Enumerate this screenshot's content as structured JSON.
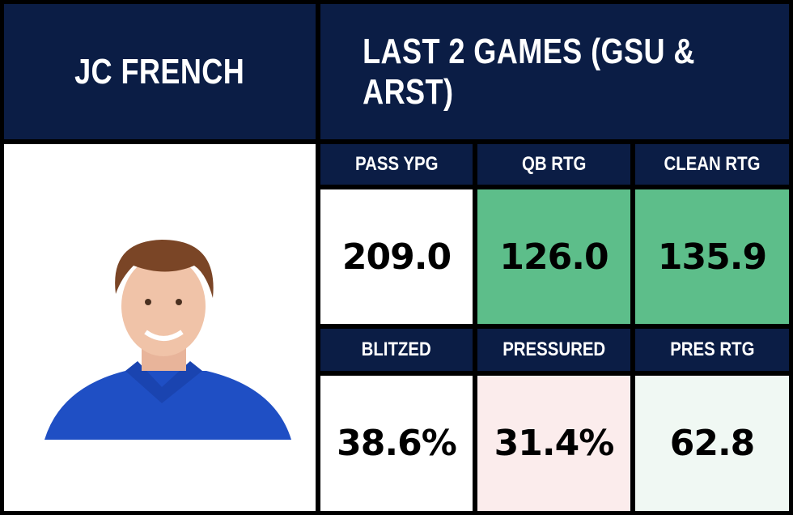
{
  "header": {
    "player": "JC FRENCH",
    "title": "LAST 2 GAMES (GSU & ARST)"
  },
  "stats": [
    {
      "label": "PASS YPG",
      "value": "209.0"
    },
    {
      "label": "QB RTG",
      "value": "126.0"
    },
    {
      "label": "CLEAN RTG",
      "value": "135.9"
    },
    {
      "label": "BLITZED",
      "value": "38.6%"
    },
    {
      "label": "PRESSURED",
      "value": "31.4%"
    },
    {
      "label": "PRES RTG",
      "value": "62.8"
    }
  ]
}
